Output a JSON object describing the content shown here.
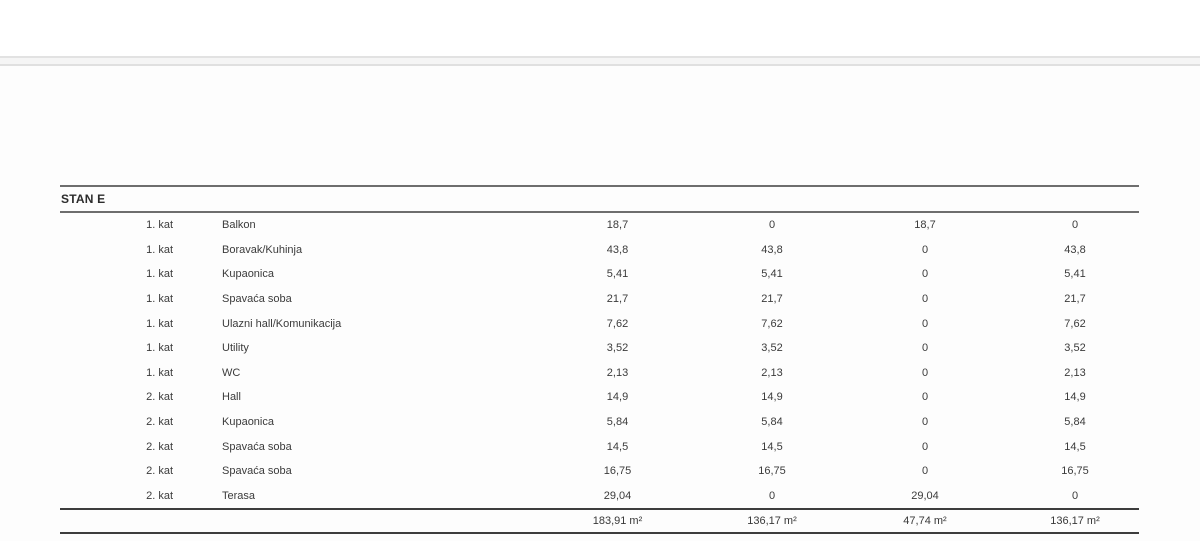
{
  "page": {
    "background": "#ffffff",
    "content_background": "#fdfdfd",
    "divider_fill": "#f5f5f5",
    "divider_border": "#e2e2e2",
    "line_gray": "#6e6e6e",
    "line_dark": "#3d3d3d",
    "text_color": "#3b3b3b"
  },
  "table": {
    "section_title": "STAN E",
    "rows": [
      {
        "floor": "1. kat",
        "room": "Balkon",
        "values": [
          "18,7",
          "0",
          "18,7",
          "0"
        ]
      },
      {
        "floor": "1. kat",
        "room": "Boravak/Kuhinja",
        "values": [
          "43,8",
          "43,8",
          "0",
          "43,8"
        ]
      },
      {
        "floor": "1. kat",
        "room": "Kupaonica",
        "values": [
          "5,41",
          "5,41",
          "0",
          "5,41"
        ]
      },
      {
        "floor": "1. kat",
        "room": "Spavaća soba",
        "values": [
          "21,7",
          "21,7",
          "0",
          "21,7"
        ]
      },
      {
        "floor": "1. kat",
        "room": "Ulazni hall/Komunikacija",
        "values": [
          "7,62",
          "7,62",
          "0",
          "7,62"
        ]
      },
      {
        "floor": "1. kat",
        "room": "Utility",
        "values": [
          "3,52",
          "3,52",
          "0",
          "3,52"
        ]
      },
      {
        "floor": "1. kat",
        "room": "WC",
        "values": [
          "2,13",
          "2,13",
          "0",
          "2,13"
        ]
      },
      {
        "floor": "2. kat",
        "room": "Hall",
        "values": [
          "14,9",
          "14,9",
          "0",
          "14,9"
        ]
      },
      {
        "floor": "2. kat",
        "room": "Kupaonica",
        "values": [
          "5,84",
          "5,84",
          "0",
          "5,84"
        ]
      },
      {
        "floor": "2. kat",
        "room": "Spavaća soba",
        "values": [
          "14,5",
          "14,5",
          "0",
          "14,5"
        ]
      },
      {
        "floor": "2. kat",
        "room": "Spavaća soba",
        "values": [
          "16,75",
          "16,75",
          "0",
          "16,75"
        ]
      },
      {
        "floor": "2. kat",
        "room": "Terasa",
        "values": [
          "29,04",
          "0",
          "29,04",
          "0"
        ]
      }
    ],
    "totals": [
      "183,91 m²",
      "136,17 m²",
      "47,74 m²",
      "136,17 m²"
    ]
  }
}
